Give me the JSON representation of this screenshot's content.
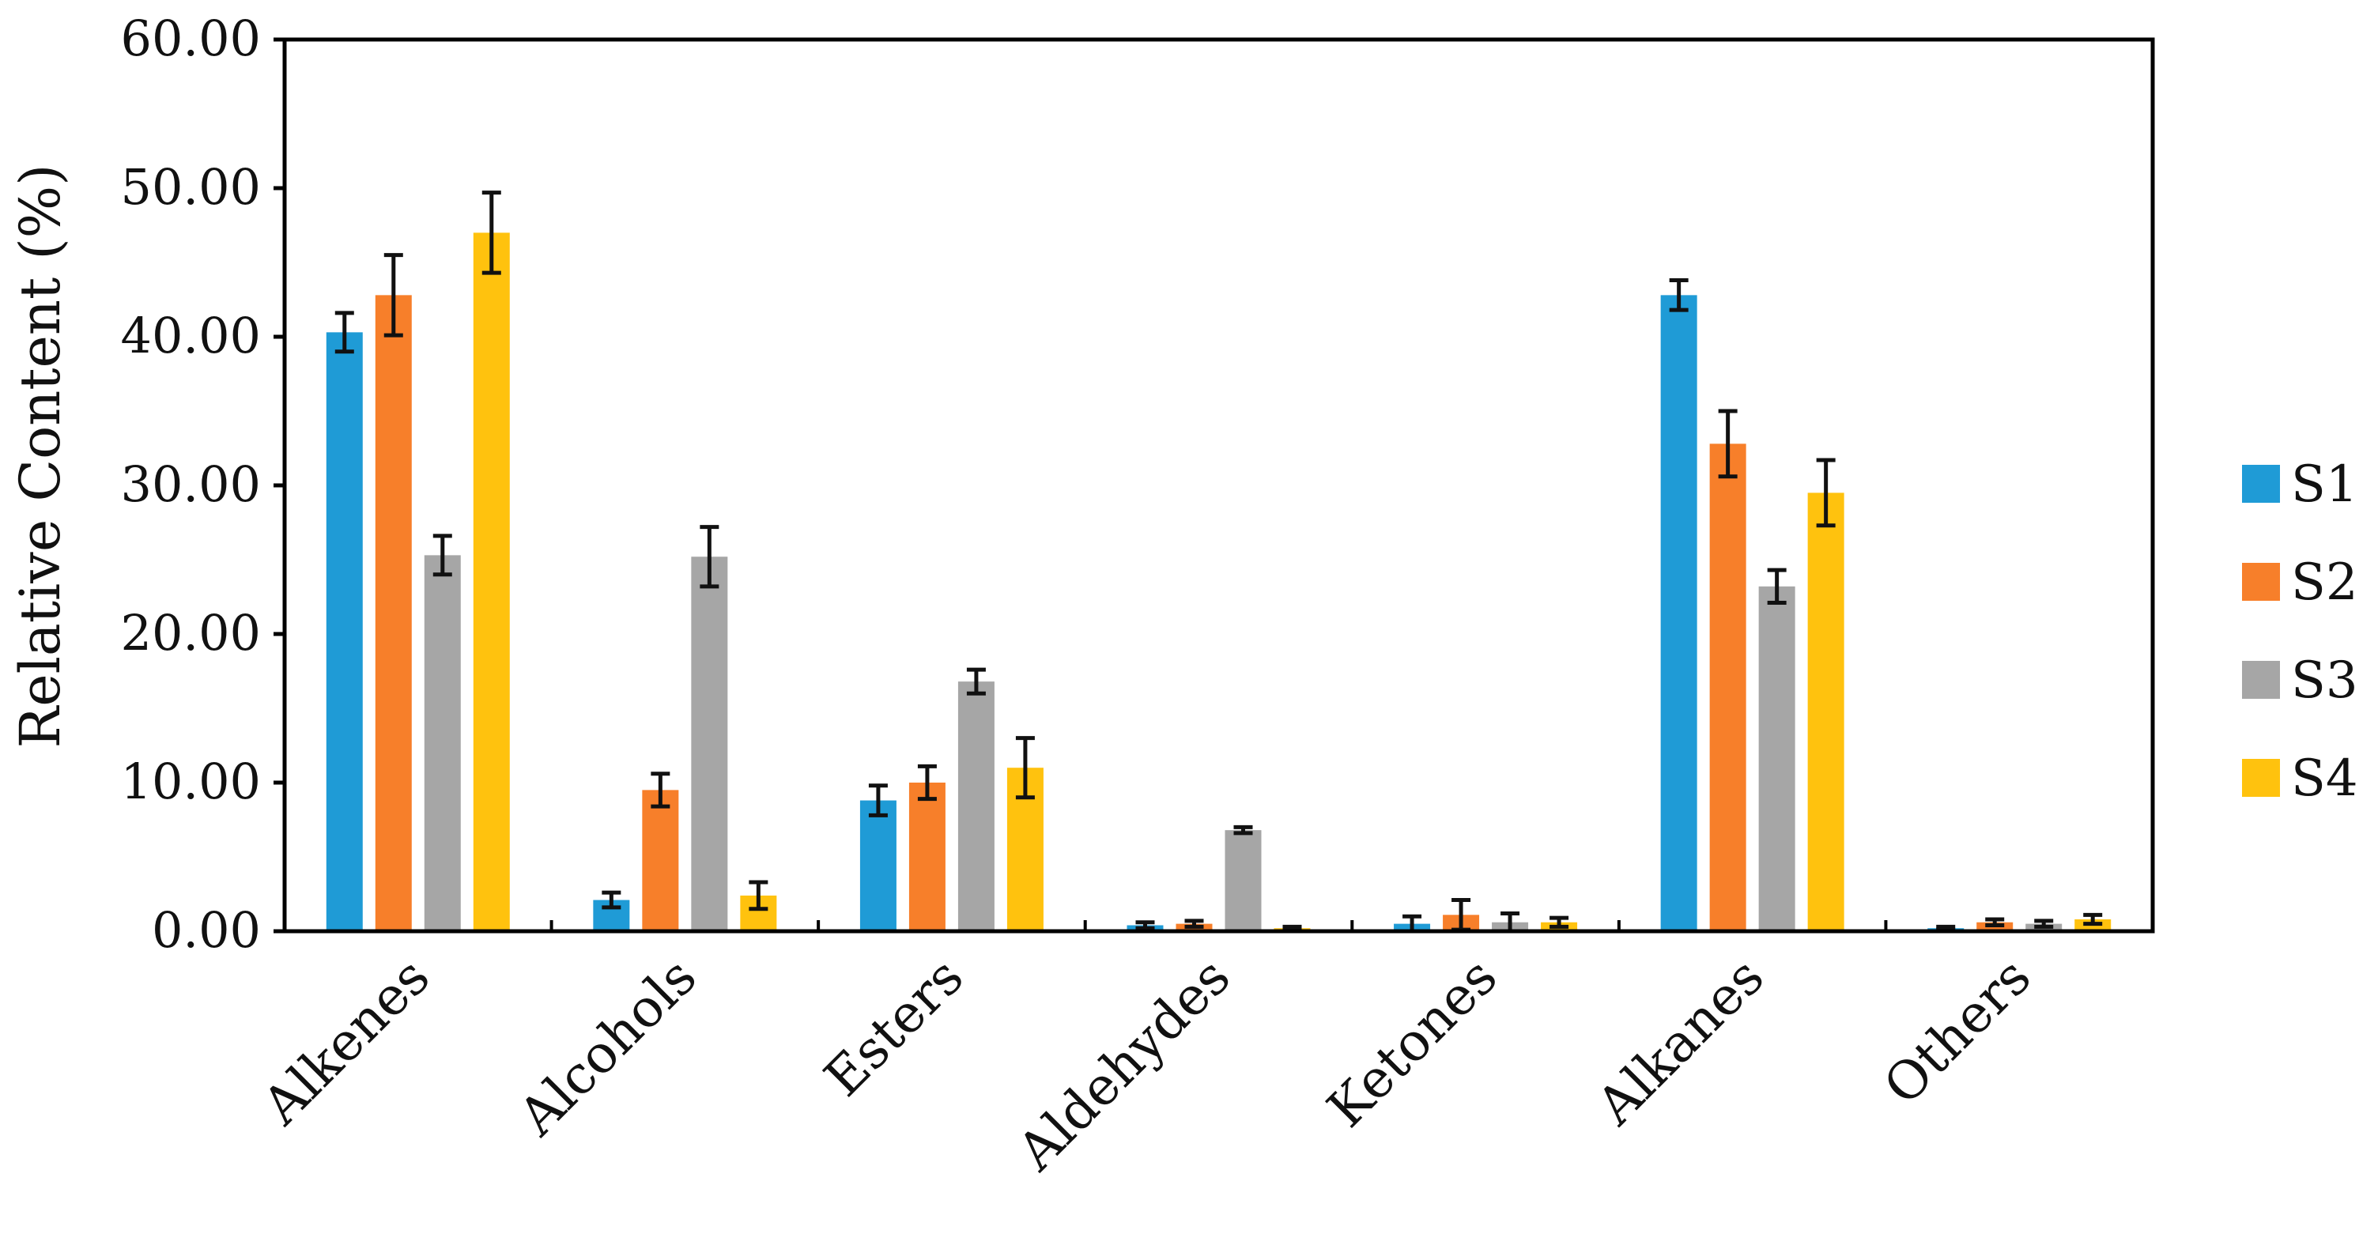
{
  "chart_data": {
    "type": "bar",
    "title": "",
    "xlabel": "",
    "ylabel": "Relative Content (%)",
    "ylim": [
      0,
      60
    ],
    "yticks": [
      "0.00",
      "10.00",
      "20.00",
      "30.00",
      "40.00",
      "50.00",
      "60.00"
    ],
    "categories": [
      "Alkenes",
      "Alcohols",
      "Esters",
      "Aldehydes",
      "Ketones",
      "Alkanes",
      "Others"
    ],
    "series": [
      {
        "name": "S1",
        "color": "#1f9bd6",
        "values": [
          40.3,
          2.1,
          8.8,
          0.4,
          0.5,
          42.8,
          0.2
        ],
        "errors": [
          1.3,
          0.5,
          1.0,
          0.2,
          0.5,
          1.0,
          0.1
        ]
      },
      {
        "name": "S2",
        "color": "#f77f2a",
        "values": [
          42.8,
          9.5,
          10.0,
          0.5,
          1.1,
          32.8,
          0.6
        ],
        "errors": [
          2.7,
          1.1,
          1.1,
          0.2,
          1.0,
          2.2,
          0.2
        ]
      },
      {
        "name": "S3",
        "color": "#a6a6a6",
        "values": [
          25.3,
          25.2,
          16.8,
          6.8,
          0.6,
          23.2,
          0.5
        ],
        "errors": [
          1.3,
          2.0,
          0.8,
          0.2,
          0.6,
          1.1,
          0.2
        ]
      },
      {
        "name": "S4",
        "color": "#ffc20e",
        "values": [
          47.0,
          2.4,
          11.0,
          0.2,
          0.6,
          29.5,
          0.8
        ],
        "errors": [
          2.7,
          0.9,
          2.0,
          0.1,
          0.3,
          2.2,
          0.3
        ]
      }
    ],
    "grid": false,
    "legend_position": "right"
  }
}
